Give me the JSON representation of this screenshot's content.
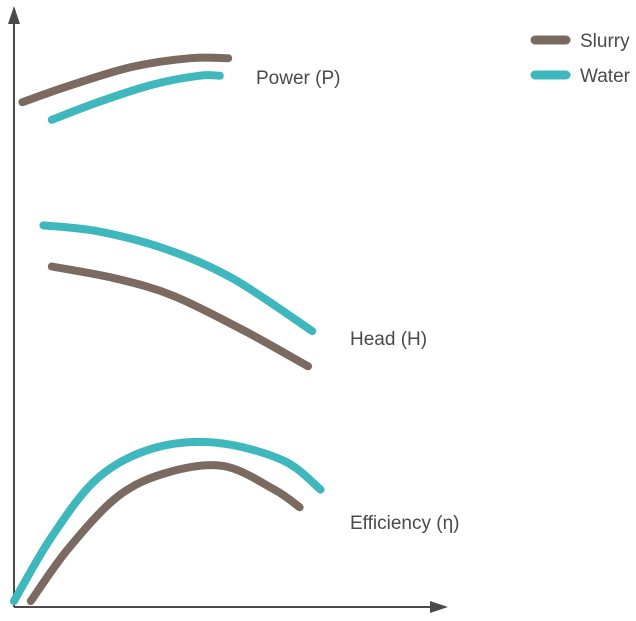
{
  "chart_data": {
    "type": "line",
    "title": "",
    "xlabel": "",
    "ylabel": "",
    "ticks": false,
    "grid": false,
    "legend_placement": "top-right",
    "colors": {
      "slurry": "#7a6a60",
      "water": "#3fb8bd",
      "axis": "#4a4a4a"
    },
    "legend": [
      {
        "key": "slurry",
        "label": "Slurry"
      },
      {
        "key": "water",
        "label": "Water"
      }
    ],
    "curves": [
      {
        "label": "Power (P)",
        "series": [
          {
            "key": "slurry",
            "points": [
              [
                0.02,
                0.86
              ],
              [
                0.14,
                0.89
              ],
              [
                0.28,
                0.92
              ],
              [
                0.42,
                0.935
              ],
              [
                0.51,
                0.935
              ]
            ]
          },
          {
            "key": "water",
            "points": [
              [
                0.09,
                0.83
              ],
              [
                0.2,
                0.86
              ],
              [
                0.33,
                0.89
              ],
              [
                0.44,
                0.905
              ],
              [
                0.49,
                0.905
              ]
            ]
          }
        ]
      },
      {
        "label": "Head (H)",
        "series": [
          {
            "key": "water",
            "points": [
              [
                0.07,
                0.65
              ],
              [
                0.2,
                0.64
              ],
              [
                0.36,
                0.61
              ],
              [
                0.52,
                0.56
              ],
              [
                0.71,
                0.47
              ]
            ]
          },
          {
            "key": "slurry",
            "points": [
              [
                0.09,
                0.58
              ],
              [
                0.24,
                0.56
              ],
              [
                0.38,
                0.53
              ],
              [
                0.55,
                0.47
              ],
              [
                0.7,
                0.41
              ]
            ]
          }
        ]
      },
      {
        "label": "Efficiency (η)",
        "series": [
          {
            "key": "water",
            "points": [
              [
                0.0,
                0.01
              ],
              [
                0.09,
                0.12
              ],
              [
                0.2,
                0.22
              ],
              [
                0.33,
                0.27
              ],
              [
                0.48,
                0.28
              ],
              [
                0.64,
                0.25
              ],
              [
                0.73,
                0.2
              ]
            ]
          },
          {
            "key": "slurry",
            "points": [
              [
                0.04,
                0.01
              ],
              [
                0.13,
                0.1
              ],
              [
                0.25,
                0.19
              ],
              [
                0.37,
                0.23
              ],
              [
                0.5,
                0.24
              ],
              [
                0.62,
                0.2
              ],
              [
                0.68,
                0.17
              ]
            ]
          }
        ]
      }
    ]
  }
}
